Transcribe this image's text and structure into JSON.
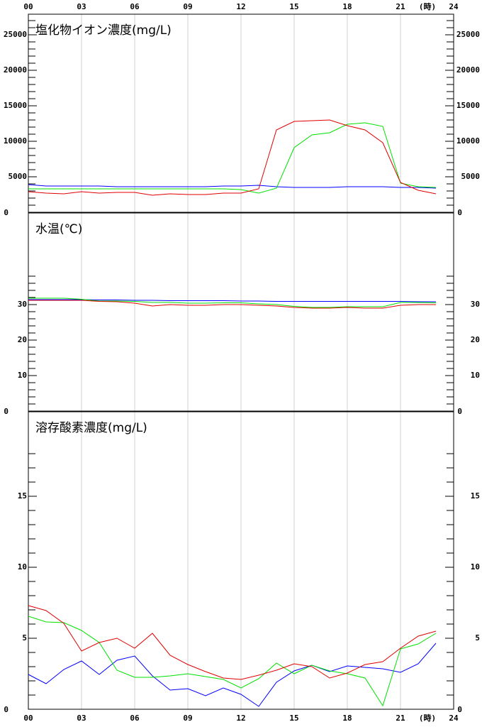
{
  "chart_data": [
    {
      "type": "line",
      "title": "塩化物イオン濃度(mg/L)",
      "xaxis_position": "top",
      "x_unit": "(時)",
      "x": [
        0,
        1,
        2,
        3,
        4,
        5,
        6,
        7,
        8,
        9,
        10,
        11,
        12,
        13,
        14,
        15,
        16,
        17,
        18,
        19,
        20,
        21,
        22,
        23
      ],
      "xlim": [
        0,
        24
      ],
      "xticks": [
        {
          "value": 0,
          "label": "00"
        },
        {
          "value": 3,
          "label": "03"
        },
        {
          "value": 6,
          "label": "06"
        },
        {
          "value": 9,
          "label": "09"
        },
        {
          "value": 12,
          "label": "12"
        },
        {
          "value": 15,
          "label": "15"
        },
        {
          "value": 18,
          "label": "18"
        },
        {
          "value": 21,
          "label": "21"
        },
        24
      ],
      "ylim": [
        0,
        27900
      ],
      "yticks": [
        0,
        5000,
        10000,
        15000,
        20000,
        25000
      ],
      "minor_yticks": [
        1000,
        2000,
        3000,
        4000,
        6000,
        7000,
        8000,
        9000,
        11000,
        12000,
        13000,
        14000,
        16000,
        17000,
        18000,
        19000,
        21000,
        22000,
        23000,
        24000,
        26000,
        27000
      ],
      "grid": true,
      "series": [
        {
          "color": "#0000ff",
          "values": [
            3900,
            3700,
            3700,
            3700,
            3700,
            3600,
            3600,
            3600,
            3600,
            3600,
            3600,
            3700,
            3700,
            3800,
            3600,
            3500,
            3500,
            3500,
            3600,
            3600,
            3600,
            3500,
            3500,
            3400
          ]
        },
        {
          "color": "#00e000",
          "values": [
            3300,
            3300,
            3300,
            3300,
            3300,
            3300,
            3300,
            3300,
            3300,
            3300,
            3300,
            3300,
            3200,
            2700,
            3400,
            9100,
            10900,
            11200,
            12400,
            12600,
            12100,
            4100,
            3600,
            3500
          ]
        },
        {
          "color": "#e00000",
          "values": [
            2900,
            2700,
            2600,
            2900,
            2700,
            2800,
            2800,
            2400,
            2600,
            2500,
            2500,
            2700,
            2700,
            3300,
            11600,
            12800,
            12900,
            13000,
            12200,
            11600,
            9800,
            4200,
            3100,
            2600
          ]
        }
      ]
    },
    {
      "type": "line",
      "title": "水温(℃)",
      "x": [
        0,
        1,
        2,
        3,
        4,
        5,
        6,
        7,
        8,
        9,
        10,
        11,
        12,
        13,
        14,
        15,
        16,
        17,
        18,
        19,
        20,
        21,
        22,
        23
      ],
      "xlim": [
        0,
        24
      ],
      "xticks": [
        0,
        3,
        6,
        9,
        12,
        15,
        18,
        21,
        24
      ],
      "ylim": [
        0,
        55.8
      ],
      "yticks": [
        0,
        10,
        20,
        30
      ],
      "minor_yticks": [
        2,
        4,
        6,
        8,
        12,
        14,
        16,
        18,
        22,
        24,
        26,
        28,
        32,
        34,
        36,
        38
      ],
      "grid": true,
      "series": [
        {
          "color": "#0000ff",
          "values": [
            31.4,
            31.4,
            31.4,
            31.4,
            31.3,
            31.3,
            31.2,
            31.2,
            31.1,
            31.1,
            31.1,
            31.1,
            31.0,
            31.0,
            30.9,
            30.9,
            30.9,
            30.9,
            30.9,
            30.9,
            30.9,
            30.9,
            30.8,
            30.8
          ]
        },
        {
          "color": "#00e000",
          "values": [
            31.8,
            31.8,
            31.8,
            31.5,
            31.0,
            31.0,
            30.9,
            30.6,
            30.6,
            30.4,
            30.4,
            30.5,
            30.5,
            30.2,
            30.0,
            29.5,
            29.2,
            29.2,
            29.4,
            29.4,
            29.4,
            30.6,
            30.6,
            30.5
          ]
        },
        {
          "color": "#e00000",
          "values": [
            31.2,
            31.2,
            31.2,
            31.2,
            30.9,
            30.8,
            30.4,
            29.6,
            30.0,
            29.8,
            29.8,
            30.0,
            30.0,
            29.8,
            29.6,
            29.2,
            29.0,
            29.0,
            29.2,
            29.0,
            29.0,
            29.8,
            30.0,
            30.0
          ]
        }
      ]
    },
    {
      "type": "line",
      "title": "溶存酸素濃度(mg/L)",
      "xaxis_position": "bottom",
      "x_unit": "(時)",
      "x": [
        0,
        1,
        2,
        3,
        4,
        5,
        6,
        7,
        8,
        9,
        10,
        11,
        12,
        13,
        14,
        15,
        16,
        17,
        18,
        19,
        20,
        21,
        22,
        23
      ],
      "xlim": [
        0,
        24
      ],
      "xticks": [
        {
          "value": 0,
          "label": "00"
        },
        {
          "value": 3,
          "label": "03"
        },
        {
          "value": 6,
          "label": "06"
        },
        {
          "value": 9,
          "label": "09"
        },
        {
          "value": 12,
          "label": "12"
        },
        {
          "value": 15,
          "label": "15"
        },
        {
          "value": 18,
          "label": "18"
        },
        {
          "value": 21,
          "label": "21"
        },
        24
      ],
      "ylim": [
        0,
        20.95
      ],
      "yticks": [
        0,
        5,
        10,
        15
      ],
      "minor_yticks": [
        1,
        2,
        3,
        4,
        6,
        7,
        8,
        9,
        11,
        12,
        13,
        14,
        16,
        17,
        18
      ],
      "grid": true,
      "series": [
        {
          "color": "#0000ff",
          "values": [
            2.45,
            1.8,
            2.8,
            3.4,
            2.45,
            3.45,
            3.75,
            2.35,
            1.35,
            1.45,
            0.95,
            1.5,
            1.05,
            0.2,
            1.9,
            2.7,
            3.1,
            2.65,
            3.05,
            2.95,
            2.85,
            2.6,
            3.2,
            4.65
          ]
        },
        {
          "color": "#00e000",
          "values": [
            6.55,
            6.15,
            6.1,
            5.55,
            4.7,
            2.75,
            2.25,
            2.25,
            2.35,
            2.5,
            2.3,
            2.1,
            1.5,
            2.15,
            3.25,
            2.5,
            3.1,
            2.7,
            2.5,
            2.2,
            0.25,
            4.25,
            4.6,
            5.35
          ]
        },
        {
          "color": "#e00000",
          "values": [
            7.3,
            6.95,
            6.05,
            4.1,
            4.7,
            5.0,
            4.3,
            5.35,
            3.8,
            3.15,
            2.65,
            2.2,
            2.1,
            2.4,
            2.75,
            3.2,
            3.0,
            2.2,
            2.55,
            3.15,
            3.35,
            4.3,
            5.15,
            5.5
          ]
        }
      ]
    }
  ]
}
